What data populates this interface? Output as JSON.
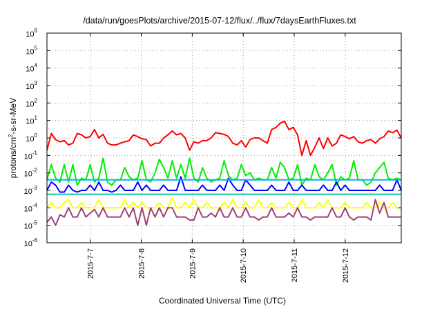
{
  "chart_data": {
    "type": "line",
    "title": "/data/run/goesPlots/archive/2015-07-12/flux/../flux/7daysEarthFluxes.txt",
    "xlabel": "Coordinated Universal Time (UTC)",
    "ylabel_parts": [
      "protons/cm",
      "2",
      "-s-sr-MeV"
    ],
    "y_scale": "log",
    "ylim_exponents": [
      -6,
      6
    ],
    "y_tick_base": "10",
    "y_tick_exponents": [
      "6",
      "5",
      "4",
      "3",
      "2",
      "1",
      "0",
      "-1",
      "-2",
      "-3",
      "-4",
      "-5",
      "-6"
    ],
    "x_range_days": [
      0,
      6.95
    ],
    "x_ticks": [
      {
        "label": "2015-7-7",
        "day": 0.85
      },
      {
        "label": "2015-7-8",
        "day": 1.85
      },
      {
        "label": "2015-7-9",
        "day": 2.85
      },
      {
        "label": "2015-7-10",
        "day": 3.85
      },
      {
        "label": "2015-7-11",
        "day": 4.85
      },
      {
        "label": "2015-7-12",
        "day": 5.85
      }
    ],
    "grid": true,
    "legend": "none",
    "series": [
      {
        "color": "#ff0000",
        "values": [
          0.2,
          1.8,
          0.8,
          0.6,
          0.7,
          0.4,
          0.5,
          1.8,
          1.5,
          1.0,
          1.2,
          3.0,
          1.0,
          1.6,
          0.5,
          0.4,
          0.4,
          0.5,
          0.6,
          0.7,
          1.5,
          1.2,
          0.9,
          0.8,
          0.35,
          0.5,
          0.5,
          1.0,
          1.5,
          2.5,
          1.5,
          1.8,
          1.0,
          0.2,
          0.6,
          0.5,
          0.7,
          0.7,
          1.0,
          2.0,
          1.8,
          1.6,
          1.2,
          0.5,
          0.4,
          0.7,
          0.3,
          0.8,
          1.0,
          1.0,
          0.7,
          0.5,
          3.0,
          4.0,
          7.0,
          9.0,
          3.0,
          4.0,
          1.5,
          0.1,
          0.7,
          0.1,
          0.3,
          1.0,
          0.25,
          1.0,
          0.35,
          0.5,
          1.5,
          1.2,
          0.9,
          1.2,
          0.6,
          0.5,
          0.7,
          0.8,
          0.5,
          0.9,
          1.2,
          2.5,
          2.0,
          2.8,
          1.0
        ]
      },
      {
        "color": "#00ee00",
        "values": [
          0.004,
          0.03,
          0.005,
          0.003,
          0.03,
          0.003,
          0.03,
          0.002,
          0.005,
          0.004,
          0.03,
          0.003,
          0.005,
          0.07,
          0.003,
          0.002,
          0.004,
          0.004,
          0.02,
          0.006,
          0.004,
          0.005,
          0.05,
          0.004,
          0.003,
          0.01,
          0.06,
          0.02,
          0.005,
          0.05,
          0.005,
          0.03,
          0.005,
          0.07,
          0.005,
          0.003,
          0.02,
          0.005,
          0.003,
          0.004,
          0.005,
          0.05,
          0.007,
          0.004,
          0.005,
          0.03,
          0.007,
          0.01,
          0.004,
          0.005,
          0.004,
          0.004,
          0.02,
          0.005,
          0.04,
          0.02,
          0.004,
          0.005,
          0.03,
          0.002,
          0.005,
          0.004,
          0.03,
          0.006,
          0.004,
          0.01,
          0.03,
          0.002,
          0.006,
          0.004,
          0.005,
          0.05,
          0.004,
          0.004,
          0.002,
          0.003,
          0.01,
          0.02,
          0.04,
          0.005,
          0.004,
          0.005,
          0.004
        ]
      },
      {
        "color": "#0000ff",
        "values": [
          0.001,
          0.003,
          0.002,
          0.0008,
          0.0008,
          0.002,
          0.001,
          0.0008,
          0.001,
          0.001,
          0.002,
          0.001,
          0.003,
          0.001,
          0.001,
          0.0008,
          0.001,
          0.002,
          0.001,
          0.001,
          0.001,
          0.003,
          0.001,
          0.002,
          0.001,
          0.001,
          0.001,
          0.002,
          0.001,
          0.001,
          0.001,
          0.006,
          0.001,
          0.001,
          0.001,
          0.001,
          0.002,
          0.001,
          0.001,
          0.001,
          0.002,
          0.001,
          0.005,
          0.002,
          0.001,
          0.001,
          0.004,
          0.002,
          0.001,
          0.001,
          0.001,
          0.001,
          0.002,
          0.001,
          0.001,
          0.001,
          0.003,
          0.001,
          0.001,
          0.002,
          0.001,
          0.001,
          0.001,
          0.001,
          0.002,
          0.001,
          0.001,
          0.003,
          0.001,
          0.002,
          0.001,
          0.001,
          0.001,
          0.001,
          0.001,
          0.001,
          0.001,
          0.002,
          0.001,
          0.001,
          0.001,
          0.004,
          0.001
        ]
      },
      {
        "color": "#00b0ff",
        "values": [
          0.004,
          0.004,
          0.004,
          0.004,
          0.004,
          0.004,
          0.004,
          0.004,
          0.004,
          0.004,
          0.004,
          0.004,
          0.004,
          0.004,
          0.004,
          0.004,
          0.004,
          0.004,
          0.004,
          0.004,
          0.004,
          0.004,
          0.004,
          0.004,
          0.004,
          0.004,
          0.004,
          0.004,
          0.004,
          0.004,
          0.004,
          0.004,
          0.004,
          0.004,
          0.004,
          0.004,
          0.004,
          0.004,
          0.004,
          0.004,
          0.004,
          0.004,
          0.004,
          0.004,
          0.004,
          0.004,
          0.004,
          0.004,
          0.004,
          0.004,
          0.004,
          0.004,
          0.004,
          0.004,
          0.004,
          0.004,
          0.004,
          0.004,
          0.004,
          0.004,
          0.004,
          0.004,
          0.004,
          0.004,
          0.004,
          0.004,
          0.004,
          0.004,
          0.004,
          0.004,
          0.004,
          0.004,
          0.004,
          0.004,
          0.004,
          0.004,
          0.004,
          0.004,
          0.004,
          0.004,
          0.004,
          0.004,
          0.004
        ]
      },
      {
        "color": "#10c8a0",
        "values": [
          0.0006,
          0.0006,
          0.0006,
          0.0006,
          0.0006,
          0.0006,
          0.0006,
          0.0006,
          0.0006,
          0.0006,
          0.0006,
          0.0006,
          0.0006,
          0.0006,
          0.0006,
          0.0006,
          0.0006,
          0.0006,
          0.0006,
          0.0006,
          0.0006,
          0.0006,
          0.0006,
          0.0006,
          0.0006,
          0.0006,
          0.0006,
          0.0006,
          0.0006,
          0.0006,
          0.0006,
          0.0006,
          0.0006,
          0.0006,
          0.0006,
          0.0006,
          0.0006,
          0.0006,
          0.0006,
          0.0006,
          0.0006,
          0.0006,
          0.0006,
          0.0006,
          0.0006,
          0.0006,
          0.0006,
          0.0006,
          0.0006,
          0.0006,
          0.0006,
          0.0006,
          0.0006,
          0.0006,
          0.0006,
          0.0006,
          0.0006,
          0.0006,
          0.0006,
          0.0006,
          0.0006,
          0.0006,
          0.0006,
          0.0006,
          0.0006,
          0.0006,
          0.0006,
          0.0006,
          0.0006,
          0.0006,
          0.0006,
          0.0006,
          0.0006,
          0.0006,
          0.0006,
          0.0006,
          0.0006,
          0.0006,
          0.0006,
          0.0006,
          0.0006,
          0.0006,
          0.0006
        ]
      },
      {
        "color": "#ffff00",
        "values": [
          0.0001,
          0.0002,
          0.0001,
          0.0001,
          0.0002,
          0.0003,
          0.0001,
          0.0001,
          0.0002,
          0.0001,
          0.0001,
          0.0001,
          0.0003,
          0.0001,
          0.0001,
          0.0001,
          0.0001,
          0.0001,
          0.0003,
          0.0001,
          0.0002,
          0.0001,
          0.0002,
          0.0001,
          0.0001,
          0.0001,
          0.0002,
          0.0001,
          0.0001,
          0.0004,
          0.0001,
          0.0001,
          0.0002,
          0.0001,
          0.0003,
          0.0001,
          0.0001,
          0.0002,
          0.0001,
          0.0001,
          0.0001,
          0.0002,
          0.0001,
          0.0003,
          0.0001,
          0.0001,
          0.0002,
          0.0001,
          0.0001,
          0.0003,
          0.0001,
          0.0001,
          0.0002,
          0.0001,
          0.0001,
          0.0001,
          0.0002,
          0.0001,
          0.0001,
          0.0003,
          0.0001,
          0.0001,
          0.0001,
          0.0002,
          0.0001,
          0.0003,
          0.0001,
          0.0001,
          0.0001,
          0.0002,
          0.0001,
          0.0001,
          0.0001,
          0.0001,
          0.0002,
          0.0001,
          0.0001,
          0.0002,
          0.0001,
          0.0001,
          0.0002,
          0.0001,
          0.0001
        ]
      },
      {
        "color": "#a04070",
        "values": [
          1.5e-05,
          3e-05,
          1e-05,
          4e-05,
          3e-05,
          0.0001,
          3e-05,
          3e-05,
          0.0001,
          3e-05,
          5e-05,
          8e-05,
          3e-05,
          0.0001,
          3e-05,
          3e-05,
          3e-05,
          3e-05,
          0.0001,
          3e-05,
          0.0001,
          1e-05,
          0.0001,
          1e-05,
          0.0001,
          3e-05,
          0.0001,
          3e-05,
          0.0001,
          0.0001,
          3e-05,
          3e-05,
          3e-05,
          2e-05,
          2e-05,
          0.0001,
          3e-05,
          3e-05,
          5e-05,
          3e-05,
          0.0001,
          3e-05,
          3e-05,
          0.0001,
          3e-05,
          3e-05,
          0.0001,
          3e-05,
          3e-05,
          2e-05,
          3e-05,
          3e-05,
          0.0001,
          3e-05,
          3e-05,
          3e-05,
          5e-05,
          3e-05,
          0.0001,
          3e-05,
          3e-05,
          2e-05,
          3e-05,
          3e-05,
          3e-05,
          3e-05,
          0.0001,
          3e-05,
          3e-05,
          0.0001,
          3e-05,
          2e-05,
          3e-05,
          3e-05,
          3e-05,
          2e-05,
          0.0003,
          5e-05,
          0.0002,
          3e-05,
          3e-05,
          3e-05,
          3e-05
        ]
      }
    ]
  }
}
